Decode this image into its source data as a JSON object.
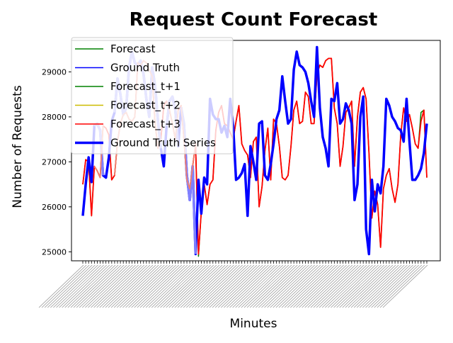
{
  "chart_data": {
    "type": "line",
    "title": "Request Count Forecast",
    "xlabel": "Minutes",
    "ylabel": "Number of Requests",
    "ylim": [
      24800,
      29700
    ],
    "yticks": [
      25000,
      26000,
      27000,
      28000,
      29000
    ],
    "ytick_labels": [
      "25000",
      "26000",
      "27000",
      "28000",
      "29000"
    ],
    "x_count": 120,
    "x_tick_labels_readable": false,
    "legend_position": "upper-left",
    "grid": false,
    "colors": {
      "forecast": "#008000",
      "ground_truth": "#0000ff",
      "forecast_t1": "#008000",
      "forecast_t2": "#ccbb00",
      "forecast_t3": "#ff0000",
      "ground_truth_series": "#0000ff",
      "ground_truth_series_highlight": "#8080ff",
      "forecast_t3_highlight": "#f08070"
    },
    "legend": [
      {
        "name": "Forecast",
        "color": "#008000",
        "width": 1.5
      },
      {
        "name": "Ground Truth",
        "color": "#0000ff",
        "width": 1.5
      },
      {
        "name": "Forecast_t+1",
        "color": "#008000",
        "width": 1.5
      },
      {
        "name": "Forecast_t+2",
        "color": "#ccbb00",
        "width": 1.5
      },
      {
        "name": "Forecast_t+3",
        "color": "#ff0000",
        "width": 1.5
      },
      {
        "name": "Ground Truth Series",
        "color": "#0000ff",
        "width": 3.5
      }
    ],
    "series": [
      {
        "name": "Ground Truth Series",
        "values": [
          25800,
          26500,
          27100,
          26550,
          27800,
          27850,
          27700,
          26700,
          26650,
          27100,
          27900,
          28100,
          28850,
          28500,
          28050,
          28200,
          29100,
          29450,
          29200,
          29150,
          29250,
          28950,
          28400,
          28000,
          29100,
          28700,
          27900,
          27300,
          26900,
          27800,
          28350,
          28450,
          28150,
          27350,
          28200,
          27850,
          26700,
          26150,
          26900,
          24950,
          26600,
          25850,
          26650,
          26500,
          28400,
          28050,
          27950,
          27950,
          27650,
          27800,
          27550,
          28400,
          27800,
          26600,
          26650,
          26750,
          26950,
          25800,
          27350,
          27000,
          26600,
          27850,
          27900,
          26700,
          26600,
          26950,
          27400,
          27950,
          28150,
          28900,
          28350,
          27850,
          27950,
          29050,
          29450,
          29150,
          29100,
          29000,
          28750,
          28350,
          28000,
          29550,
          28200,
          27550,
          27300,
          26900,
          28400,
          28350,
          28750,
          27850,
          27950,
          28300,
          28150,
          27850,
          26150,
          26500,
          28000,
          28450,
          25500,
          24950,
          26600,
          25900,
          26500,
          26300,
          26900,
          28400,
          28250,
          28000,
          27900,
          27750,
          27700,
          27450,
          28400,
          27450,
          26600,
          26600,
          26700,
          26850,
          27200,
          27850
        ],
        "highlight_ranges": [
          [
            4,
            7
          ],
          [
            11,
            27
          ],
          [
            29,
            33
          ],
          [
            34,
            39
          ]
        ]
      },
      {
        "name": "Forecast_t+3",
        "values": [
          26500,
          27050,
          27000,
          25800,
          26900,
          26800,
          26650,
          27800,
          27750,
          27600,
          26600,
          26700,
          27450,
          27850,
          28050,
          28100,
          27950,
          27900,
          28000,
          29200,
          29150,
          29250,
          29200,
          29050,
          28900,
          27850,
          27300,
          27500,
          28250,
          28350,
          28150,
          27850,
          27500,
          28150,
          28250,
          27500,
          26600,
          26400,
          26900,
          27400,
          24950,
          25900,
          26500,
          26050,
          26500,
          26600,
          27700,
          28100,
          28250,
          27850,
          27800,
          27650,
          27500,
          27900,
          28250,
          27400,
          27250,
          27150,
          26650,
          27450,
          27550,
          26000,
          26450,
          27250,
          27750,
          26600,
          27950,
          27850,
          27350,
          26650,
          26600,
          26700,
          27350,
          28150,
          28350,
          27850,
          27900,
          28550,
          28450,
          27850,
          27850,
          28950,
          29150,
          29100,
          29250,
          29300,
          29300,
          28200,
          27850,
          26900,
          27350,
          28100,
          28200,
          28350,
          26900,
          28000,
          28550,
          28650,
          28400,
          27200,
          25750,
          26350,
          26050,
          25100,
          26400,
          26700,
          26850,
          26400,
          26100,
          26500,
          27600,
          28200,
          27900,
          28050,
          27750,
          27400,
          27300,
          27900,
          28150,
          26650
        ]
      },
      {
        "name": "Forecast_t+1",
        "values": [
          26500,
          27050,
          27000,
          25800,
          26900,
          26800,
          26650,
          27800,
          27750,
          27600,
          26600,
          26700,
          27450,
          27850,
          28050,
          28100,
          27950,
          27900,
          28000,
          29200,
          29150,
          29250,
          29200,
          29050,
          28900,
          27850,
          27300,
          27500,
          28250,
          28350,
          28150,
          27850,
          27500,
          28150,
          28250,
          27500,
          26600,
          26400,
          26900,
          27400,
          24900,
          25900,
          26500,
          26050,
          26500,
          26600,
          27700,
          28100,
          28250,
          27850,
          27800,
          27650,
          27500,
          27900,
          28250,
          27400,
          27250,
          27150,
          26650,
          27450,
          27550,
          26000,
          26450,
          27250,
          27750,
          26600,
          27950,
          27850,
          27350,
          26650,
          26600,
          26700,
          27350,
          28150,
          28350,
          27850,
          27900,
          28550,
          28450,
          27850,
          27850,
          28950,
          29150,
          29100,
          29250,
          29300,
          29300,
          28200,
          27850,
          26900,
          27350,
          28100,
          28200,
          28350,
          26900,
          28000,
          28550,
          28650,
          28400,
          27200,
          25750,
          26350,
          26050,
          25100,
          26400,
          26700,
          26850,
          26400,
          26100,
          26500,
          27600,
          28200,
          27900,
          28050,
          27750,
          27400,
          27300,
          28100,
          28150,
          26650
        ]
      },
      {
        "name": "Forecast_t+2",
        "values": [
          26500,
          27050,
          27000,
          25800,
          26900,
          26800,
          26650,
          27800,
          27750,
          27600,
          26600,
          26700,
          27450,
          27850,
          28050,
          28100,
          27950,
          27900,
          28000,
          29200,
          29150,
          29250,
          29200,
          29050,
          28900,
          27850,
          27300,
          27500,
          28250,
          28350,
          28150,
          27850,
          27500,
          28150,
          28250,
          27500,
          26600,
          26400,
          26900,
          27400,
          24950,
          25900,
          26500,
          26050,
          26500,
          26600,
          27700,
          28100,
          28250,
          27850,
          27800,
          27650,
          27500,
          27900,
          28250,
          27400,
          27250,
          27150,
          26650,
          27450,
          27550,
          26000,
          26450,
          27250,
          27750,
          26600,
          27950,
          27850,
          27350,
          26650,
          26600,
          26700,
          27350,
          28150,
          28350,
          27850,
          27900,
          28550,
          28450,
          27850,
          27850,
          28950,
          29150,
          29100,
          29250,
          29300,
          29300,
          28200,
          27850,
          26900,
          27350,
          28100,
          28200,
          28350,
          26900,
          28000,
          28550,
          28650,
          28400,
          27200,
          25750,
          26350,
          26050,
          25100,
          26400,
          26700,
          26850,
          26400,
          26100,
          26500,
          27600,
          28200,
          27900,
          28050,
          27750,
          27400,
          27300,
          27900,
          28150,
          26650
        ]
      }
    ]
  }
}
